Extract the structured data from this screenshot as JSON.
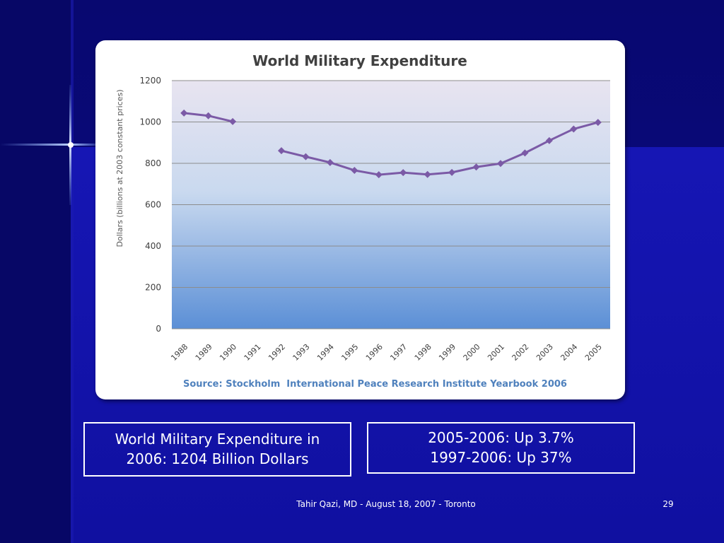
{
  "slide": {
    "colors": {
      "background": "#0a0a78",
      "panel_right": "#1414b0",
      "line": "#7b5aa6",
      "accent_star": "#7fa8ff"
    },
    "info_left": {
      "line1": "World Military Expenditure in",
      "line2": "2006: 1204 Billion Dollars"
    },
    "info_right": {
      "line1": "2005-2006: Up 3.7%",
      "line2": "1997-2006: Up 37%"
    },
    "footer": "Tahir Qazi, MD - August 18, 2007 - Toronto",
    "page_number": "29"
  },
  "chart_data": {
    "type": "line",
    "title": "World Military Expenditure",
    "ylabel": "Dollars (billions at 2003 constant prices)",
    "xlabel": "",
    "source": "Source: Stockholm  International Peace Research Institute Yearbook 2006",
    "ylim": [
      0,
      1200
    ],
    "yticks": [
      0,
      200,
      400,
      600,
      800,
      1000,
      1200
    ],
    "grid": true,
    "legend": "none",
    "categories": [
      "1988",
      "1989",
      "1990",
      "1991",
      "1992",
      "1993",
      "1994",
      "1995",
      "1996",
      "1997",
      "1998",
      "1999",
      "2000",
      "2001",
      "2002",
      "2003",
      "2004",
      "2005"
    ],
    "series": [
      {
        "values": [
          1043,
          1030,
          1002,
          null,
          861,
          832,
          804,
          766,
          745,
          755,
          746,
          756,
          782,
          799,
          850,
          910,
          966,
          998
        ]
      }
    ]
  }
}
